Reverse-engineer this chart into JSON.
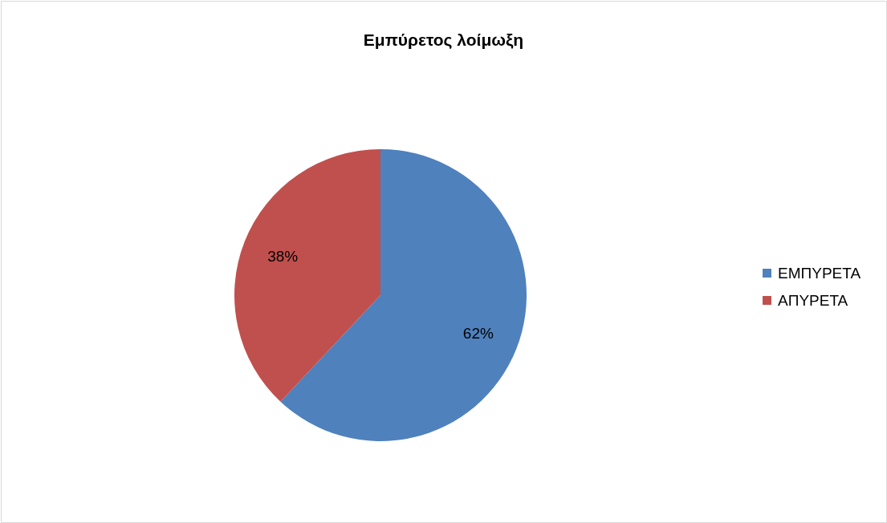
{
  "chart_data": {
    "type": "pie",
    "title": "Εμπύρετος λοίμωξη",
    "categories": [
      "ΕΜΠΥΡΕΤΑ",
      "ΑΠΥΡΕΤΑ"
    ],
    "values": [
      62,
      38
    ],
    "colors": [
      "#4f81bd",
      "#c0504d"
    ],
    "value_labels": [
      "62%",
      "38%"
    ],
    "legend": "right"
  }
}
